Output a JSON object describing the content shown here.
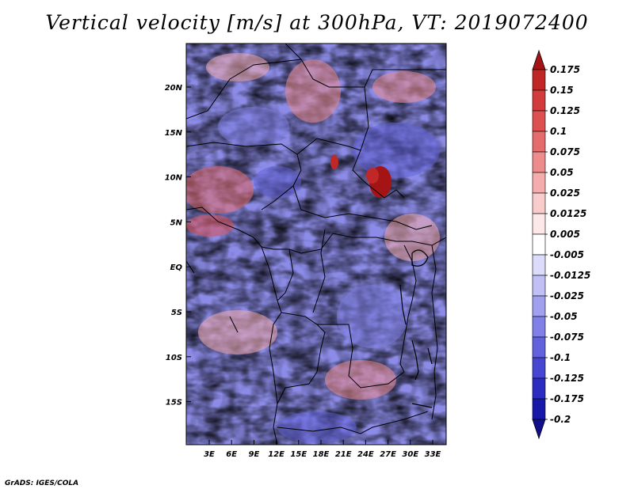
{
  "title": "Vertical velocity [m/s] at 300hPa, VT: 2019072400",
  "credit": "GrADS: IGES/COLA",
  "map": {
    "lat_labels": [
      "20N",
      "15N",
      "10N",
      "5N",
      "EQ",
      "5S",
      "10S",
      "15S"
    ],
    "lon_labels": [
      "3E",
      "6E",
      "9E",
      "12E",
      "15E",
      "18E",
      "21E",
      "24E",
      "27E",
      "30E",
      "33E"
    ],
    "lon_range": [
      0,
      35
    ],
    "lat_range": [
      -20,
      25
    ]
  },
  "colorbar": {
    "levels": [
      "0.175",
      "0.15",
      "0.125",
      "0.1",
      "0.075",
      "0.05",
      "0.025",
      "0.0125",
      "0.005",
      "-0.005",
      "-0.0125",
      "-0.025",
      "-0.05",
      "-0.075",
      "-0.1",
      "-0.125",
      "-0.175",
      "-0.2"
    ],
    "colors": [
      "#a51414",
      "#c02828",
      "#d23c3c",
      "#dc5050",
      "#e46c6c",
      "#ec8c8c",
      "#f4acac",
      "#f9cccc",
      "#fde8e8",
      "#ffffff",
      "#dcdcfa",
      "#c0c0f4",
      "#a0a0ee",
      "#8080e6",
      "#6262dc",
      "#4646d0",
      "#2c2cc0",
      "#1818a8",
      "#10108c"
    ]
  }
}
